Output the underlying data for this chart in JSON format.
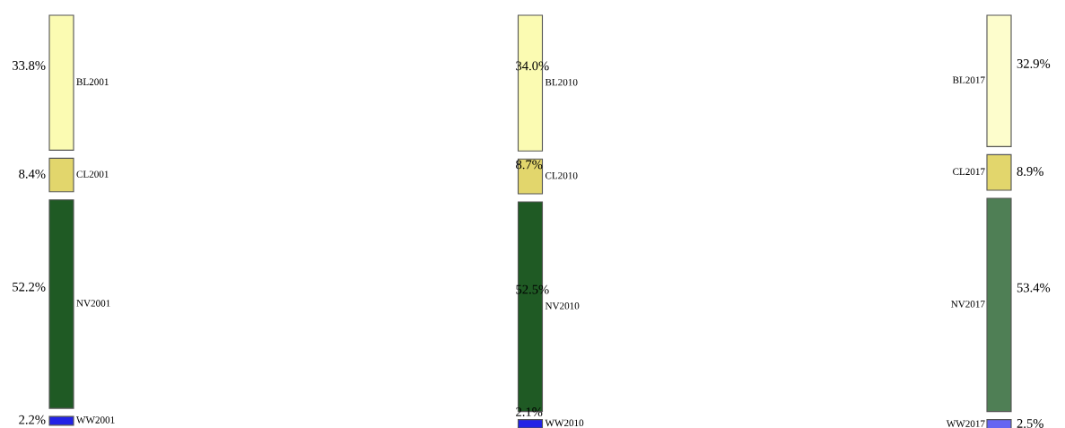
{
  "chart_data": {
    "type": "other",
    "categories": [
      "BL2001",
      "CL2001",
      "NV2001",
      "WW2001",
      "BL2010",
      "CL2010",
      "NV2010",
      "WW2010",
      "BL2017",
      "CL2017",
      "NV2017",
      "WW2017"
    ],
    "values": [
      33.8,
      8.4,
      52.2,
      2.2,
      34.0,
      8.7,
      52.5,
      2.1,
      32.9,
      8.9,
      53.4,
      2.5
    ],
    "value_labels": [
      "33.8%",
      "8.4%",
      "52.2%",
      "2.2%",
      "34.0%",
      "8.7%",
      "52.5%",
      "2.1%",
      "32.9%",
      "8.9%",
      "53.4%",
      "2.5%"
    ],
    "colors": [
      "#fbfbb2",
      "#e2d66c",
      "#1f5a24",
      "#2222e6",
      "#fbfbb2",
      "#e2d66c",
      "#1f5a24",
      "#2222e6",
      "#fdfdcc",
      "#e2d66c",
      "#4f7f55",
      "#6565f2"
    ]
  }
}
